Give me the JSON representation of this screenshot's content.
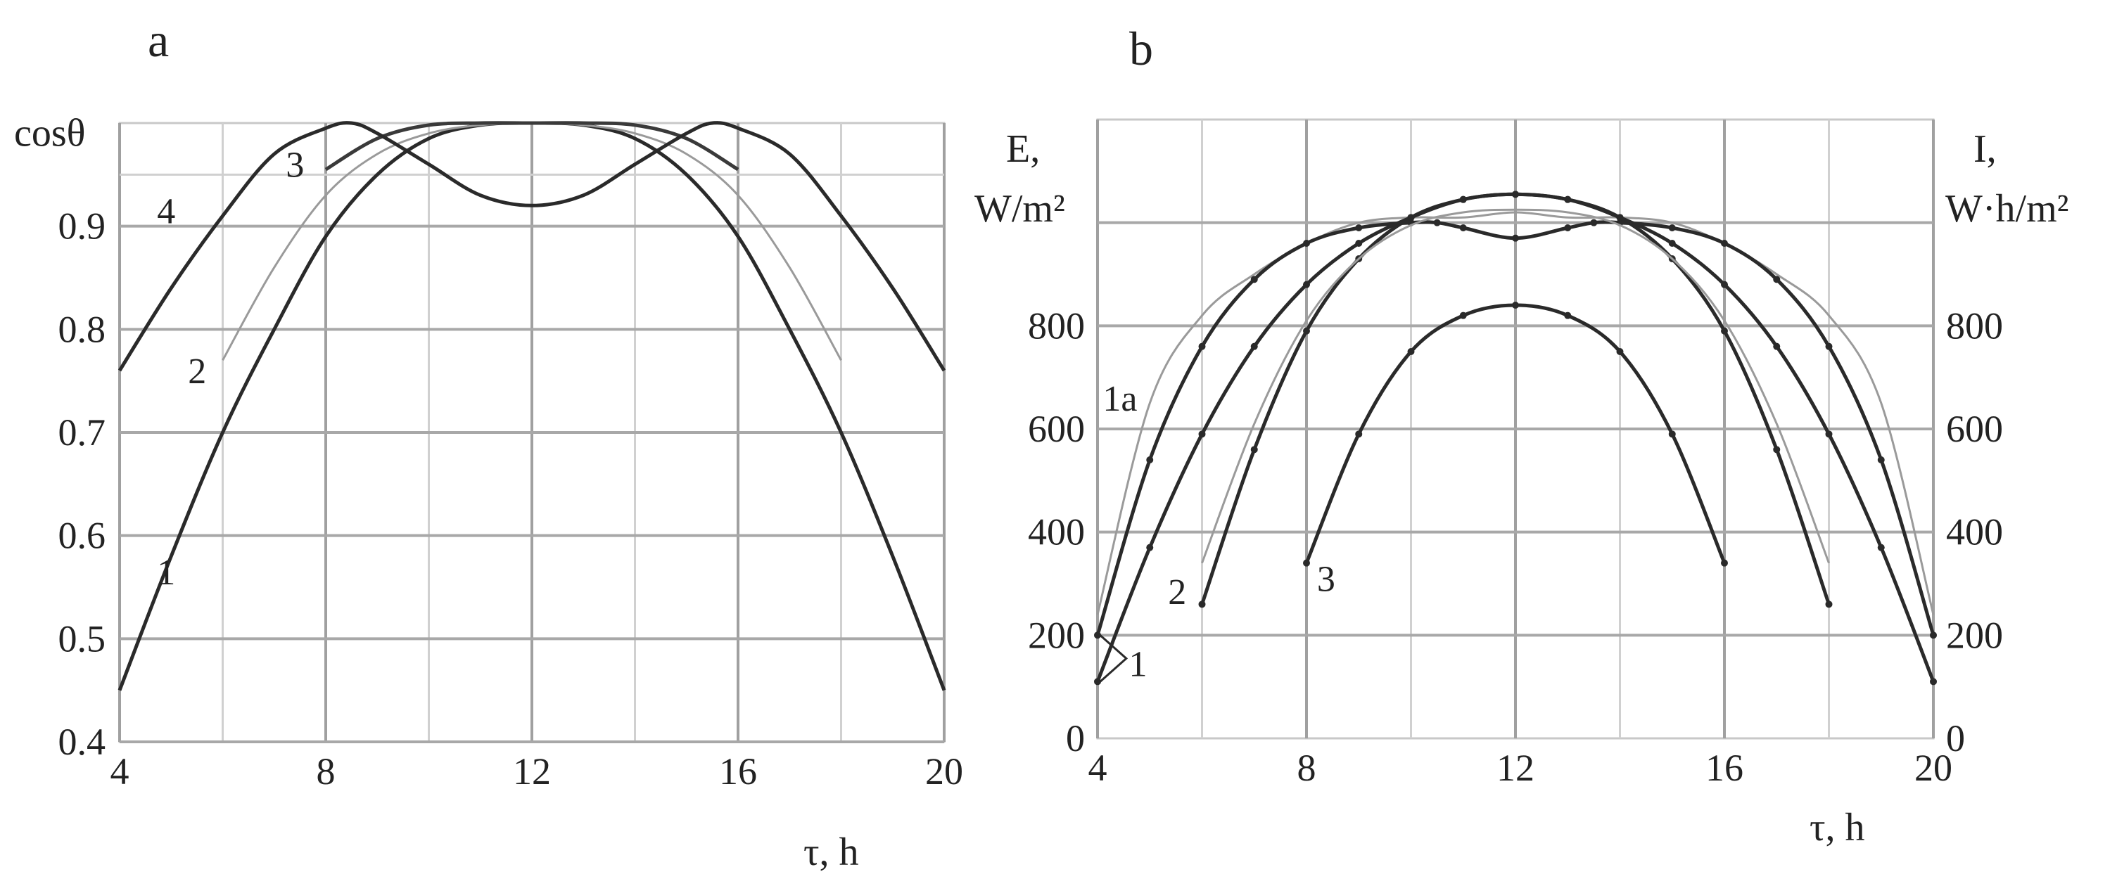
{
  "figure": {
    "panel_a_letter": "a",
    "panel_b_letter": "b"
  },
  "chart_data": [
    {
      "type": "line",
      "panel": "a",
      "title": "",
      "xlabel": "τ, h",
      "ylabel": "cosθ",
      "xlim": [
        4,
        20
      ],
      "ylim": [
        0.4,
        1.0
      ],
      "grid": true,
      "x_ticks": [
        "4",
        "8",
        "12",
        "16",
        "20"
      ],
      "y_ticks": [
        "0.4",
        "0.5",
        "0.6",
        "0.7",
        "0.8",
        "0.9"
      ],
      "series": [
        {
          "name": "1",
          "color": "#2a2a2a",
          "x": [
            4,
            5,
            6,
            7,
            8,
            9,
            10,
            11,
            12,
            13,
            14,
            15,
            16,
            17,
            18,
            19,
            20
          ],
          "y": [
            0.45,
            0.58,
            0.7,
            0.8,
            0.89,
            0.95,
            0.985,
            0.998,
            1.0,
            0.998,
            0.985,
            0.95,
            0.89,
            0.8,
            0.7,
            0.58,
            0.45
          ]
        },
        {
          "name": "2",
          "color": "#9a9a9a",
          "x": [
            6,
            7,
            8,
            9,
            10,
            11,
            12,
            13,
            14,
            15,
            16,
            17,
            18
          ],
          "y": [
            0.77,
            0.86,
            0.93,
            0.97,
            0.99,
            0.998,
            1.0,
            0.998,
            0.99,
            0.97,
            0.93,
            0.86,
            0.77
          ]
        },
        {
          "name": "3",
          "color": "#3a3a3a",
          "x": [
            8,
            9,
            10,
            11,
            12,
            13,
            14,
            15,
            16
          ],
          "y": [
            0.955,
            0.985,
            0.998,
            1.0,
            1.0,
            1.0,
            0.998,
            0.985,
            0.955
          ]
        },
        {
          "name": "4",
          "color": "#2a2a2a",
          "x": [
            4,
            5,
            6,
            7,
            8,
            8.5,
            9,
            10,
            11,
            12,
            13,
            14,
            15,
            15.5,
            16,
            17,
            18,
            19,
            20
          ],
          "y": [
            0.76,
            0.84,
            0.91,
            0.97,
            0.995,
            1.0,
            0.99,
            0.96,
            0.93,
            0.92,
            0.93,
            0.96,
            0.99,
            1.0,
            0.995,
            0.97,
            0.91,
            0.84,
            0.76
          ]
        }
      ],
      "labels": [
        "1",
        "2",
        "3",
        "4"
      ]
    },
    {
      "type": "line",
      "panel": "b",
      "title": "",
      "xlabel": "τ, h",
      "ylabel_left_line1": "E,",
      "ylabel_left_line2": "W/m²",
      "ylabel_right_line1": "I,",
      "ylabel_right_line2": "W·h/m²",
      "xlim": [
        4,
        20
      ],
      "ylim": [
        0,
        1200
      ],
      "grid": true,
      "x_ticks": [
        "4",
        "8",
        "12",
        "16",
        "20"
      ],
      "y_ticks_left": [
        "0",
        "200",
        "400",
        "600",
        "800"
      ],
      "y_ticks_right": [
        "0",
        "200",
        "400",
        "600",
        "800"
      ],
      "series": [
        {
          "name": "1a",
          "color": "#9a9a9a",
          "x": [
            4,
            5,
            6,
            7,
            8,
            9,
            10,
            11,
            12,
            13,
            14,
            15,
            16,
            17,
            18,
            19,
            20
          ],
          "y": [
            240,
            650,
            820,
            900,
            960,
            1000,
            1010,
            1010,
            1020,
            1010,
            1010,
            1000,
            960,
            900,
            820,
            650,
            240
          ]
        },
        {
          "name": "1 upper",
          "color": "#2a2a2a",
          "x": [
            4,
            5,
            6,
            7,
            8,
            9,
            10,
            10.5,
            11,
            12,
            13,
            13.5,
            14,
            15,
            16,
            17,
            18,
            19,
            20
          ],
          "y": [
            200,
            540,
            760,
            890,
            960,
            990,
            1000,
            1000,
            990,
            970,
            990,
            1000,
            1000,
            990,
            960,
            890,
            760,
            540,
            200
          ]
        },
        {
          "name": "1 lower",
          "color": "#2a2a2a",
          "x": [
            4,
            5,
            6,
            7,
            8,
            9,
            10,
            11,
            12,
            13,
            14,
            15,
            16,
            17,
            18,
            19,
            20
          ],
          "y": [
            110,
            370,
            590,
            760,
            880,
            960,
            1010,
            1045,
            1055,
            1045,
            1010,
            960,
            880,
            760,
            590,
            370,
            110
          ]
        },
        {
          "name": "2",
          "color": "#2a2a2a",
          "x": [
            6,
            7,
            8,
            9,
            10,
            11,
            12,
            13,
            14,
            15,
            16,
            17,
            18
          ],
          "y": [
            260,
            560,
            790,
            930,
            1010,
            1045,
            1055,
            1045,
            1010,
            930,
            790,
            560,
            260
          ]
        },
        {
          "name": "2 alt",
          "color": "#9a9a9a",
          "x": [
            6,
            7,
            8,
            9,
            10,
            11,
            12,
            13,
            14,
            15,
            16,
            17,
            18
          ],
          "y": [
            340,
            610,
            810,
            930,
            995,
            1020,
            1025,
            1020,
            995,
            930,
            810,
            610,
            340
          ]
        },
        {
          "name": "3",
          "color": "#2a2a2a",
          "x": [
            8,
            9,
            10,
            11,
            12,
            13,
            14,
            15,
            16
          ],
          "y": [
            340,
            590,
            750,
            820,
            840,
            820,
            750,
            590,
            340
          ]
        }
      ],
      "labels": [
        "1a",
        "1",
        "2",
        "3"
      ]
    }
  ]
}
